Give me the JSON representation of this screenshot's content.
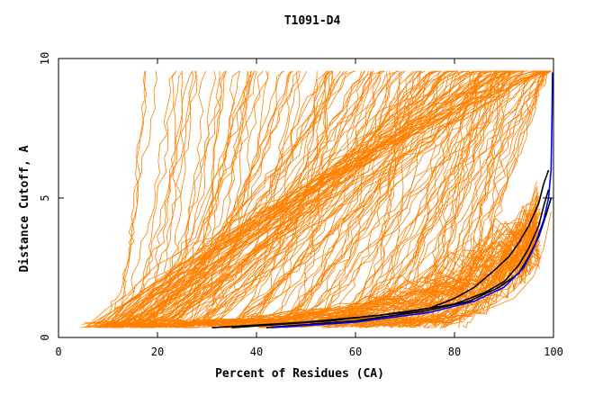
{
  "chart_data": {
    "type": "line",
    "title": "T1091-D4",
    "xlabel": "Percent of Residues (CA)",
    "ylabel": "Distance Cutoff, A",
    "xlim": [
      0,
      100
    ],
    "ylim": [
      0,
      10
    ],
    "x_ticks": [
      "0",
      "20",
      "40",
      "60",
      "80",
      "100"
    ],
    "y_ticks": [
      "0",
      "5",
      "10"
    ],
    "grid": false,
    "legend": "none",
    "colors": {
      "other_models": "#ff8000",
      "highlight_black": "#000000",
      "highlight_blue": "#0000ff"
    },
    "orange_family_anchor_x": [
      4,
      5,
      6,
      7,
      8,
      9,
      10,
      11,
      12,
      13,
      14,
      15,
      17,
      19,
      21,
      23,
      26,
      29,
      32,
      36,
      40,
      44,
      48,
      52,
      56,
      60,
      64,
      68,
      72,
      76
    ],
    "series": [
      {
        "color": "#000000",
        "x": [
          31,
          50,
          65,
          75,
          80,
          84,
          88,
          91,
          93,
          95,
          97,
          98,
          99
        ],
        "y": [
          0.35,
          0.55,
          0.8,
          1.05,
          1.4,
          1.8,
          2.4,
          2.9,
          3.4,
          4.0,
          4.8,
          5.5,
          6.0
        ]
      },
      {
        "color": "#000000",
        "x": [
          35,
          55,
          70,
          80,
          86,
          90,
          93,
          95,
          97,
          98,
          99
        ],
        "y": [
          0.35,
          0.6,
          0.9,
          1.2,
          1.6,
          2.0,
          2.6,
          3.2,
          4.0,
          4.7,
          5.3
        ]
      },
      {
        "color": "#000000",
        "x": [
          42,
          60,
          74,
          83,
          89,
          93,
          95,
          97,
          98.5,
          99.5
        ],
        "y": [
          0.35,
          0.6,
          0.95,
          1.3,
          1.8,
          2.3,
          2.9,
          3.6,
          4.4,
          5.0
        ]
      },
      {
        "color": "#0000ff",
        "x": [
          43,
          60,
          75,
          84,
          90,
          94,
          96,
          98,
          99,
          99.5,
          99.7,
          99.8
        ],
        "y": [
          0.35,
          0.55,
          0.9,
          1.3,
          1.8,
          2.5,
          3.2,
          4.2,
          5.0,
          6.0,
          8.0,
          9.5
        ]
      },
      {
        "color": "#ff8000",
        "x": [
          60,
          75,
          85,
          92,
          96,
          98,
          99.5
        ],
        "y": [
          0.4,
          0.6,
          0.9,
          1.4,
          2.2,
          3.2,
          4.5
        ]
      },
      {
        "color": "#ff8000",
        "x": [
          70,
          82,
          88,
          92,
          95,
          97
        ],
        "y": [
          0.5,
          0.8,
          1.2,
          1.7,
          2.3,
          3.0
        ]
      }
    ]
  }
}
